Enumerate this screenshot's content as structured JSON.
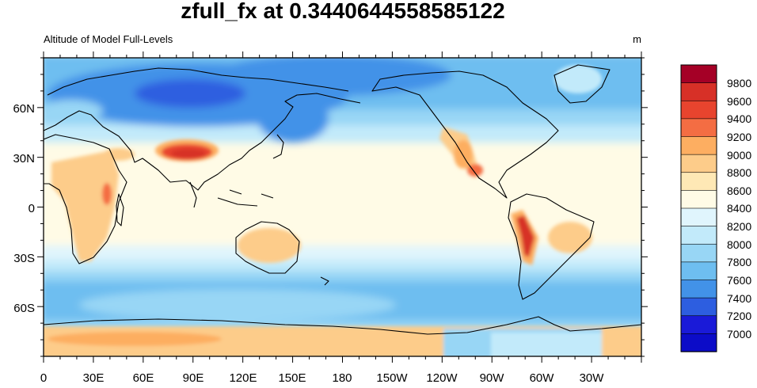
{
  "title": "zfull_fx at 0.3440644558585122",
  "left_subtitle": "Altitude of Model Full-Levels",
  "right_subtitle": "m",
  "x_tick_labels": [
    "0",
    "30E",
    "60E",
    "90E",
    "120E",
    "150E",
    "180",
    "150W",
    "120W",
    "90W",
    "60W",
    "30W"
  ],
  "y_tick_labels": [
    "60N",
    "30N",
    "0",
    "30S",
    "60S"
  ],
  "colorbar": {
    "labels": [
      "9800",
      "9600",
      "9400",
      "9200",
      "9000",
      "8800",
      "8600",
      "8400",
      "8200",
      "8000",
      "7800",
      "7600",
      "7400",
      "7200",
      "7000"
    ],
    "colors": [
      "#a50026",
      "#d73027",
      "#e8442e",
      "#f46d43",
      "#fdae61",
      "#fdcc8a",
      "#fee8b5",
      "#fffbe6",
      "#e0f5fd",
      "#c2eafa",
      "#98d6f5",
      "#6ebef0",
      "#4292e8",
      "#2d5ee0",
      "#1a1ad8",
      "#0c0cc8"
    ]
  },
  "map": {
    "projection": "cylindrical-equidistant",
    "lon_range": [
      0,
      360
    ],
    "lat_range": [
      -90,
      90
    ],
    "background_color": "#fffbe6"
  }
}
